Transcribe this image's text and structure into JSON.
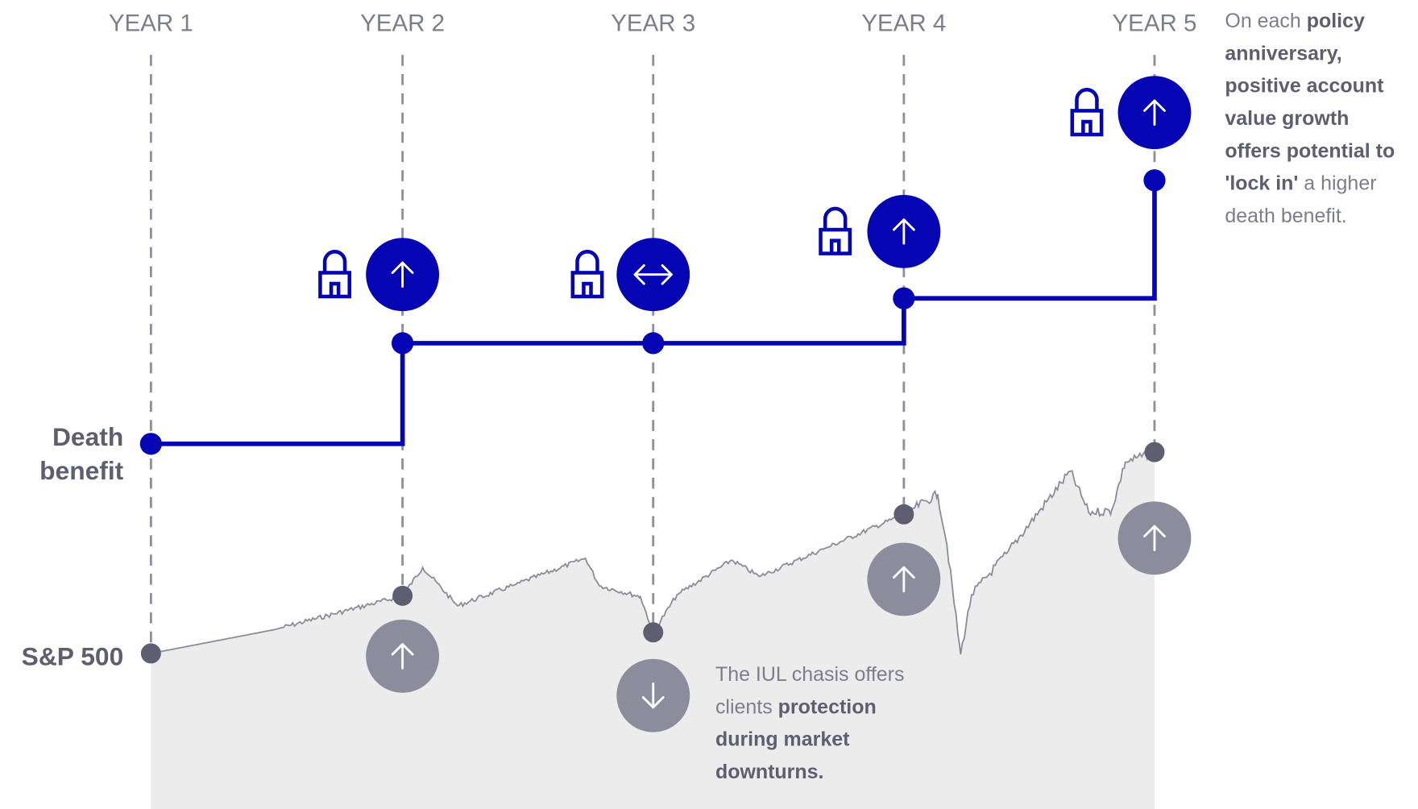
{
  "years": [
    "YEAR 1",
    "YEAR 2",
    "YEAR 3",
    "YEAR 4",
    "YEAR 5"
  ],
  "row_labels": {
    "death_benefit": [
      "Death",
      "benefit"
    ],
    "sp500": "S&P 500"
  },
  "annotation_right": [
    [
      {
        "text": "On each "
      },
      {
        "text": "policy",
        "bold": true
      }
    ],
    [
      {
        "text": "anniversary,",
        "bold": true
      }
    ],
    [
      {
        "text": "positive account",
        "bold": true
      }
    ],
    [
      {
        "text": "value growth",
        "bold": true
      }
    ],
    [
      {
        "text": "offers potential to",
        "bold": true
      }
    ],
    [
      {
        "text": "'lock in'",
        "bold": true
      },
      {
        "text": " a higher"
      }
    ],
    [
      {
        "text": "death benefit."
      }
    ]
  ],
  "annotation_bottom": [
    [
      {
        "text": "The IUL chasis offers"
      }
    ],
    [
      {
        "text": "clients "
      },
      {
        "text": "protection",
        "bold": true
      }
    ],
    [
      {
        "text": "during market",
        "bold": true
      }
    ],
    [
      {
        "text": "downturns.",
        "bold": true
      }
    ]
  ]
}
